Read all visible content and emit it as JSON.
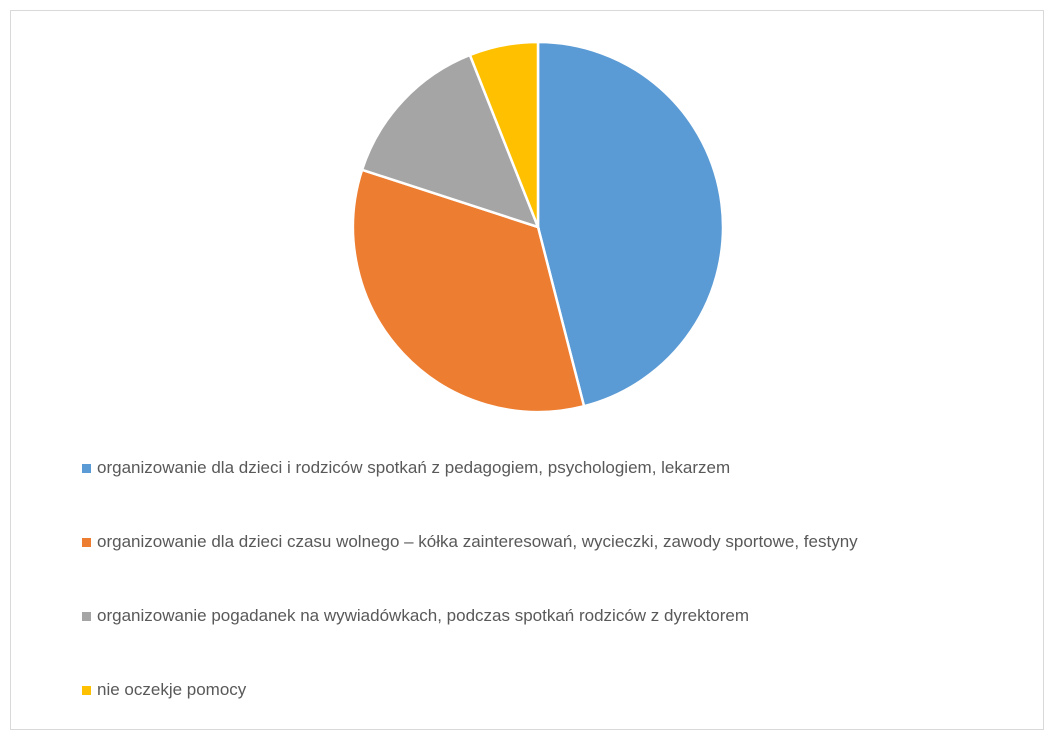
{
  "chart_data": {
    "type": "pie",
    "categories": [
      "organizowanie dla dzieci i rodziców spotkań z pedagogiem, psychologiem, lekarzem",
      "organizowanie dla dzieci czasu wolnego – kółka zainteresowań, wycieczki, zawody sportowe, festyny",
      "organizowanie pogadanek na wywiadówkach, podczas spotkań rodziców z dyrektorem",
      "nie oczekje pomocy"
    ],
    "values": [
      46,
      34,
      14,
      6
    ],
    "colors": [
      "#5b9bd5",
      "#ed7d31",
      "#a5a5a5",
      "#ffc000"
    ],
    "legend": "bottom"
  }
}
